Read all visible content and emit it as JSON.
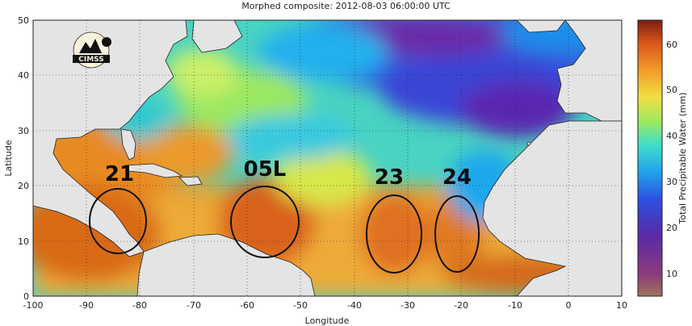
{
  "figure": {
    "title": "Morphed composite: 2012-08-03 06:00:00 UTC",
    "logo_text": "CIMSS",
    "xlabel": "Longitude",
    "ylabel": "Latitude",
    "x_ticks": [
      "-100",
      "-90",
      "-80",
      "-70",
      "-60",
      "-50",
      "-40",
      "-30",
      "-20",
      "-10",
      "0",
      "10"
    ],
    "y_ticks": [
      "0",
      "10",
      "20",
      "30",
      "40",
      "50"
    ],
    "xlim": [
      -100,
      10
    ],
    "ylim": [
      0,
      50
    ],
    "grid": "dotted"
  },
  "colorbar": {
    "label": "Total Precipitable Water (mm)",
    "ticks": [
      "10",
      "20",
      "30",
      "40",
      "50",
      "60"
    ],
    "range": [
      5,
      65
    ]
  },
  "storms": [
    {
      "id": "21",
      "lon": -84.5,
      "lat": 11.6
    },
    {
      "id": "05L",
      "lon": -56.5,
      "lat": 13.3
    },
    {
      "id": "23",
      "lon": -32.5,
      "lat": 11.0
    },
    {
      "id": "24",
      "lon": -20.5,
      "lat": 11.0
    }
  ],
  "colors": {
    "land": "#e4e4e4",
    "dry": "#5a24a8",
    "moist": "#d66a12"
  }
}
